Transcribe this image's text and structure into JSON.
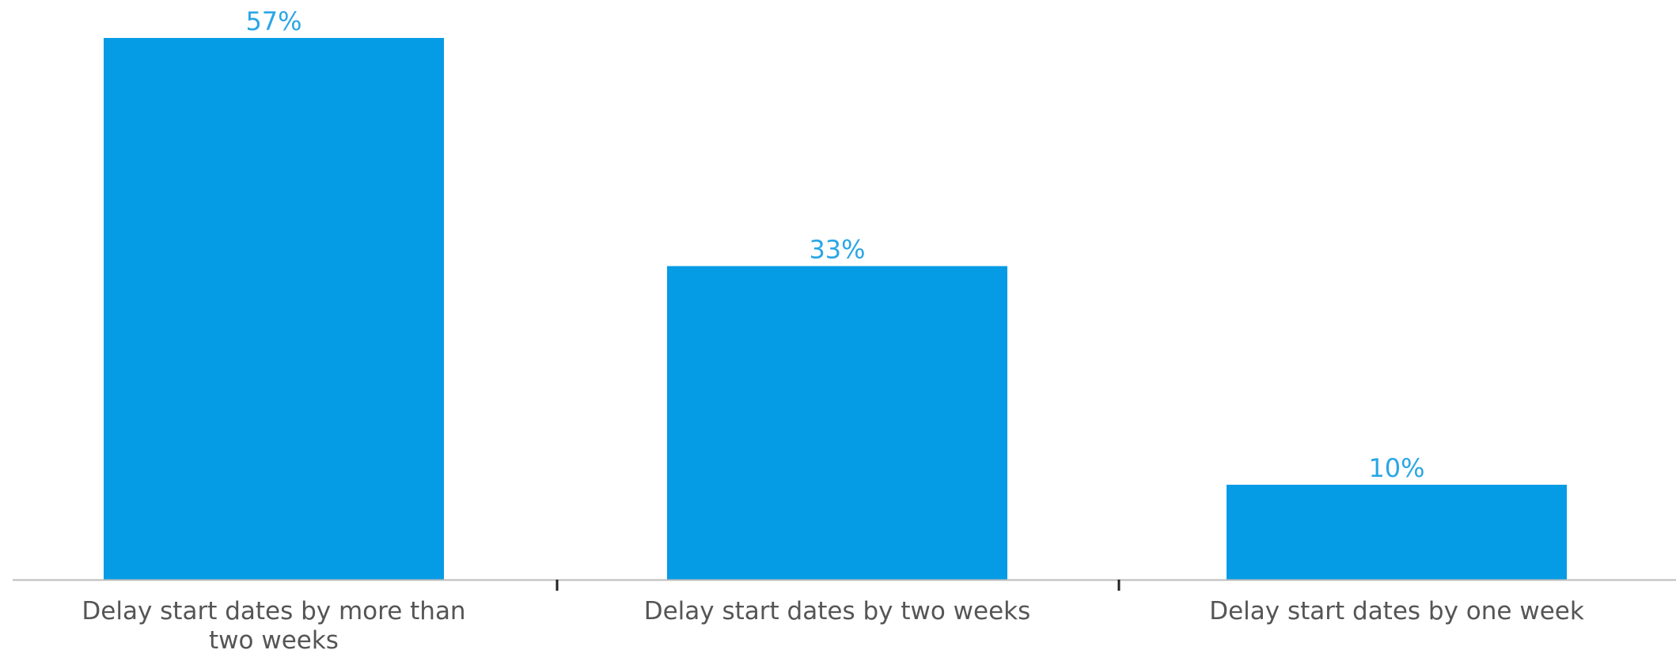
{
  "chart_data": {
    "type": "bar",
    "categories": [
      [
        "Delay start dates by more than",
        "two weeks"
      ],
      [
        "Delay start dates by two weeks"
      ],
      [
        "Delay start dates by one week"
      ]
    ],
    "values": [
      57,
      33,
      10
    ],
    "value_labels": [
      "57%",
      "33%",
      "10%"
    ],
    "ylim": [
      0,
      60
    ],
    "grid": false,
    "legend": "none",
    "bar_color": "#069be5",
    "label_color": "#2aa6e6",
    "axis_color": "#bbbbbb",
    "category_label_color": "#555555"
  }
}
